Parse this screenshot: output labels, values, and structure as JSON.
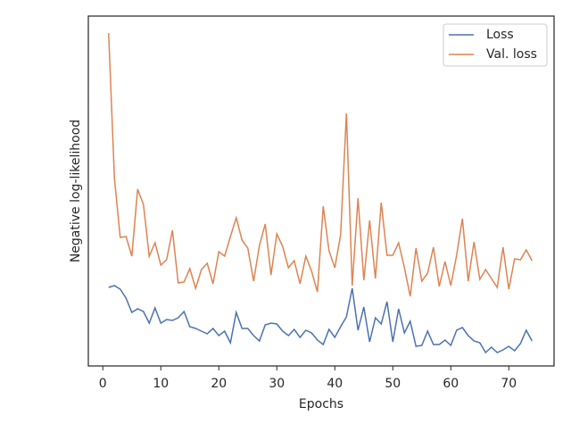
{
  "chart_data": {
    "type": "line",
    "x": [
      1,
      2,
      3,
      4,
      5,
      6,
      7,
      8,
      9,
      10,
      11,
      12,
      13,
      14,
      15,
      16,
      17,
      18,
      19,
      20,
      21,
      22,
      23,
      24,
      25,
      26,
      27,
      28,
      29,
      30,
      31,
      32,
      33,
      34,
      35,
      36,
      37,
      38,
      39,
      40,
      41,
      42,
      43,
      44,
      45,
      46,
      47,
      48,
      49,
      50,
      51,
      52,
      53,
      54,
      55,
      56,
      57,
      58,
      59,
      60,
      61,
      62,
      63,
      64,
      65,
      66,
      67,
      68,
      69,
      70,
      71,
      72,
      73,
      74
    ],
    "series": [
      {
        "name": "Loss",
        "color": "#4c72b0",
        "values": [
          88,
          90,
          86,
          76,
          60,
          64,
          61,
          48,
          65,
          48,
          52,
          51,
          54,
          61,
          44,
          42,
          39,
          36,
          42,
          34,
          39,
          26,
          60,
          42,
          42,
          34,
          28,
          46,
          48,
          47,
          39,
          34,
          41,
          32,
          40,
          37,
          29,
          24,
          41,
          32,
          44,
          55,
          87,
          40,
          66,
          27,
          54,
          47,
          72,
          27,
          64,
          37,
          50,
          22,
          23,
          39,
          24,
          24,
          29,
          23,
          40,
          43,
          34,
          28,
          26,
          15,
          21,
          15,
          18,
          22,
          17,
          25,
          40,
          28
        ]
      },
      {
        "name": "Val. loss",
        "color": "#dd8452",
        "values": [
          373,
          210,
          144,
          145,
          123,
          198,
          181,
          123,
          138,
          113,
          119,
          152,
          93,
          94,
          109,
          87,
          108,
          115,
          92,
          128,
          123,
          145,
          166,
          141,
          132,
          95,
          135,
          159,
          102,
          148,
          134,
          110,
          118,
          92,
          123,
          106,
          83,
          179,
          129,
          110,
          147,
          283,
          90,
          188,
          96,
          163,
          98,
          183,
          124,
          124,
          138,
          110,
          78,
          132,
          95,
          104,
          133,
          89,
          117,
          90,
          124,
          165,
          95,
          139,
          97,
          108,
          98,
          88,
          133,
          86,
          120,
          119,
          130,
          118
        ]
      }
    ],
    "xlabel": "Epochs",
    "ylabel": "Negative log-likelihood",
    "xlim": [
      -2.5,
      77.8
    ],
    "ylim": [
      0,
      392
    ],
    "xticks": [
      0,
      10,
      20,
      30,
      40,
      50,
      60,
      70
    ],
    "legend": "upper right"
  }
}
